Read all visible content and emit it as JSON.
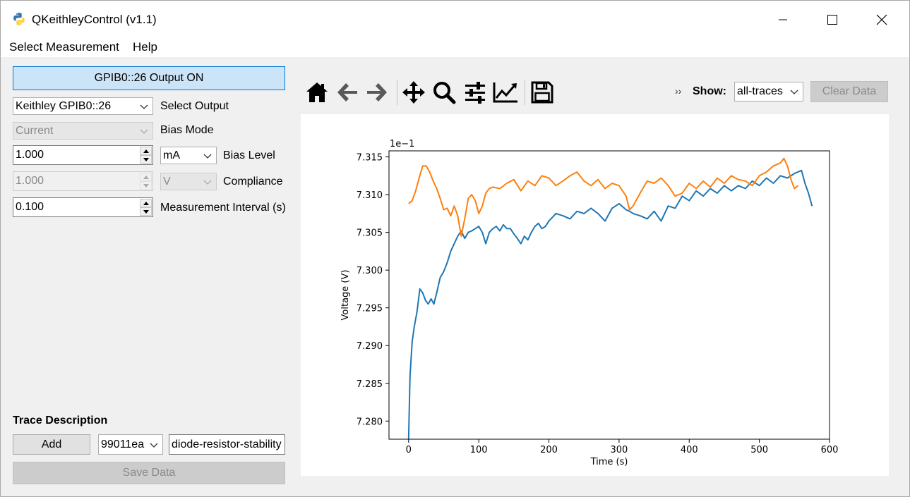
{
  "window": {
    "title": "QKeithleyControl (v1.1)",
    "controls": [
      "minimize",
      "maximize",
      "close"
    ]
  },
  "menu": {
    "items": [
      "Select Measurement",
      "Help"
    ]
  },
  "left_panel": {
    "output_button_label": "GPIB0::26 Output ON",
    "instrument": {
      "value": "Keithley GPIB0::26",
      "label": "Select Output"
    },
    "bias_mode": {
      "value": "Current",
      "label": "Bias Mode",
      "disabled": true
    },
    "bias_level": {
      "value": "1.000",
      "unit": "mA",
      "label": "Bias Level"
    },
    "compliance": {
      "value": "1.000",
      "unit": "V",
      "label": "Compliance",
      "disabled": true
    },
    "interval": {
      "value": "0.100",
      "label": "Measurement Interval (s)"
    },
    "trace_description_title": "Trace Description",
    "add_button_label": "Add",
    "trace_id": "99011ea",
    "trace_description_value": "diode-resistor-stability",
    "save_button_label": "Save Data",
    "save_button_disabled": true
  },
  "toolbar": {
    "tools": [
      "home-icon",
      "back-arrow-icon",
      "forward-arrow-icon",
      "pan-icon",
      "zoom-icon",
      "configure-subplots-icon",
      "edit-axis-icon",
      "save-figure-icon"
    ],
    "more_glyph": "››",
    "show_label": "Show:",
    "show_value": "all-traces",
    "clear_button_label": "Clear Data",
    "clear_button_disabled": true
  },
  "chart_data": {
    "type": "line",
    "xlabel": "Time (s)",
    "ylabel": "Voltage (V)",
    "offset_text": "1e−1",
    "xlim": [
      -28,
      600
    ],
    "ylim": [
      7.2776,
      7.3158
    ],
    "xticks": [
      0,
      100,
      200,
      300,
      400,
      500,
      600
    ],
    "xtick_labels": [
      "0",
      "100",
      "200",
      "300",
      "400",
      "500",
      "600"
    ],
    "yticks": [
      7.28,
      7.285,
      7.29,
      7.295,
      7.3,
      7.305,
      7.31,
      7.315
    ],
    "ytick_labels": [
      "7.280",
      "7.285",
      "7.290",
      "7.295",
      "7.300",
      "7.305",
      "7.310",
      "7.315"
    ],
    "grid": false,
    "series": [
      {
        "color": "#1f77b4",
        "x": [
          0,
          2,
          5,
          8,
          12,
          16,
          20,
          24,
          28,
          32,
          36,
          40,
          45,
          50,
          55,
          60,
          65,
          70,
          75,
          80,
          85,
          90,
          95,
          100,
          105,
          110,
          115,
          120,
          125,
          130,
          135,
          140,
          145,
          150,
          155,
          160,
          165,
          170,
          175,
          180,
          185,
          190,
          195,
          200,
          210,
          220,
          230,
          240,
          250,
          260,
          270,
          280,
          290,
          300,
          310,
          315,
          320,
          330,
          340,
          350,
          360,
          370,
          380,
          390,
          400,
          410,
          420,
          430,
          440,
          450,
          460,
          470,
          480,
          490,
          500,
          510,
          520,
          530,
          540,
          550,
          560,
          565,
          570,
          575
        ],
        "y": [
          7.2776,
          7.286,
          7.2905,
          7.2925,
          7.2945,
          7.2975,
          7.297,
          7.296,
          7.2955,
          7.2962,
          7.2955,
          7.297,
          7.299,
          7.2998,
          7.301,
          7.3025,
          7.3035,
          7.3045,
          7.3052,
          7.3042,
          7.305,
          7.3052,
          7.3055,
          7.3058,
          7.305,
          7.3035,
          7.305,
          7.3055,
          7.3058,
          7.3052,
          7.306,
          7.3055,
          7.3055,
          7.3048,
          7.3042,
          7.3035,
          7.3045,
          7.304,
          7.305,
          7.3058,
          7.3062,
          7.3055,
          7.3058,
          7.3065,
          7.3075,
          7.3072,
          7.3068,
          7.3078,
          7.3075,
          7.3082,
          7.3075,
          7.3065,
          7.3082,
          7.3088,
          7.308,
          7.3078,
          7.3075,
          7.3072,
          7.3068,
          7.3078,
          7.3065,
          7.3085,
          7.3082,
          7.3098,
          7.3092,
          7.3105,
          7.3098,
          7.3108,
          7.3102,
          7.3112,
          7.3105,
          7.3112,
          7.3108,
          7.3118,
          7.3112,
          7.3122,
          7.3115,
          7.3125,
          7.3122,
          7.3128,
          7.3132,
          7.3115,
          7.3102,
          7.3085
        ]
      },
      {
        "color": "#ff7f0e",
        "x": [
          0,
          5,
          10,
          15,
          20,
          25,
          30,
          35,
          40,
          45,
          50,
          55,
          60,
          65,
          70,
          75,
          80,
          85,
          90,
          95,
          100,
          105,
          110,
          115,
          120,
          130,
          140,
          150,
          160,
          170,
          180,
          190,
          200,
          210,
          220,
          230,
          240,
          250,
          260,
          270,
          280,
          290,
          300,
          310,
          315,
          320,
          330,
          340,
          350,
          360,
          370,
          380,
          390,
          400,
          410,
          420,
          430,
          440,
          450,
          460,
          470,
          480,
          490,
          500,
          510,
          520,
          530,
          535,
          540,
          545,
          550,
          555
        ],
        "y": [
          7.3088,
          7.3092,
          7.3105,
          7.3122,
          7.3138,
          7.3138,
          7.313,
          7.3118,
          7.3108,
          7.3095,
          7.308,
          7.3082,
          7.3072,
          7.3085,
          7.3072,
          7.3045,
          7.3068,
          7.3095,
          7.31,
          7.3092,
          7.3075,
          7.3085,
          7.3102,
          7.3108,
          7.311,
          7.3108,
          7.3115,
          7.312,
          7.3105,
          7.3118,
          7.3112,
          7.3125,
          7.3122,
          7.3112,
          7.3118,
          7.3125,
          7.313,
          7.3118,
          7.3112,
          7.312,
          7.3108,
          7.3115,
          7.3112,
          7.3098,
          7.308,
          7.3085,
          7.3102,
          7.3118,
          7.3115,
          7.3122,
          7.3112,
          7.3098,
          7.3102,
          7.3115,
          7.3108,
          7.3118,
          7.311,
          7.3122,
          7.3115,
          7.3125,
          7.312,
          7.3118,
          7.3112,
          7.3125,
          7.313,
          7.3138,
          7.3142,
          7.3148,
          7.3138,
          7.312,
          7.3108,
          7.3112
        ]
      }
    ]
  }
}
